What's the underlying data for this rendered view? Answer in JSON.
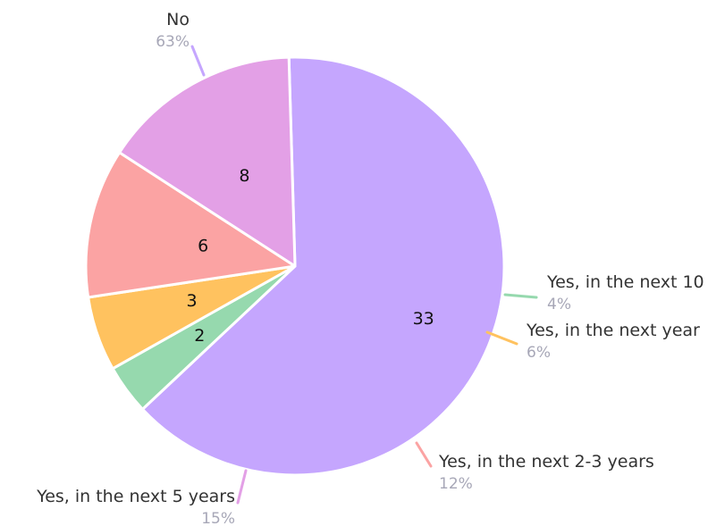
{
  "chart_data": {
    "type": "pie",
    "title": "",
    "slices": [
      {
        "label": "No",
        "value": 33,
        "percent": "63%",
        "color": "#c5a6fe"
      },
      {
        "label": "Yes, in the next 10",
        "value": 2,
        "percent": "4%",
        "color": "#96d9ae"
      },
      {
        "label": "Yes, in the next year",
        "value": 3,
        "percent": "6%",
        "color": "#ffc25f"
      },
      {
        "label": "Yes, in the next 2-3 years",
        "value": 6,
        "percent": "12%",
        "color": "#fba3a3"
      },
      {
        "label": "Yes, in the next 5 years",
        "value": 8,
        "percent": "15%",
        "color": "#e3a0e6"
      }
    ]
  }
}
